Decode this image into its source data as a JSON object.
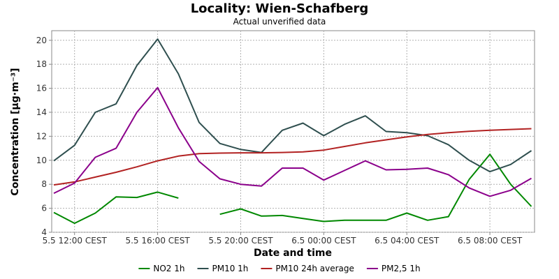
{
  "chart_data": {
    "type": "line",
    "title": "Locality: Wien-Schafberg",
    "subtitle": "Actual unverified data",
    "xlabel": "Date and time",
    "ylabel": "Concentration [µg·m⁻³]",
    "ylim": [
      4,
      20.8
    ],
    "yticks": [
      4,
      6,
      8,
      10,
      12,
      14,
      16,
      18,
      20
    ],
    "xlim": [
      -0.1,
      23.15
    ],
    "xticks": [
      {
        "x": 1,
        "label": "5.5 12:00 CEST"
      },
      {
        "x": 5,
        "label": "5.5 16:00 CEST"
      },
      {
        "x": 9,
        "label": "5.5 20:00 CEST"
      },
      {
        "x": 13,
        "label": "6.5 00:00 CEST"
      },
      {
        "x": 17,
        "label": "6.5 04:00 CEST"
      },
      {
        "x": 21,
        "label": "6.5 08:00 CEST"
      }
    ],
    "grid": true,
    "legend_position": "bottom",
    "series": [
      {
        "name": "NO2 1h",
        "color": "#008800",
        "values": [
          5.65,
          4.75,
          5.6,
          6.95,
          6.9,
          7.35,
          6.85,
          null,
          5.5,
          5.95,
          5.35,
          5.4,
          5.15,
          4.9,
          5.0,
          5.0,
          5.0,
          5.6,
          5.0,
          5.3,
          8.4,
          10.5,
          8.0,
          6.15
        ]
      },
      {
        "name": "PM10 1h",
        "color": "#2f4f4f",
        "values": [
          9.95,
          11.25,
          14.0,
          14.7,
          17.9,
          20.1,
          17.2,
          13.15,
          11.4,
          10.9,
          10.65,
          12.5,
          13.1,
          12.05,
          13.0,
          13.7,
          12.4,
          12.3,
          12.05,
          11.3,
          10.0,
          9.05,
          9.65,
          10.8
        ]
      },
      {
        "name": "PM10 24h average",
        "color": "#b22222",
        "values": [
          7.95,
          8.2,
          8.6,
          9.0,
          9.45,
          9.95,
          10.35,
          10.55,
          10.6,
          10.62,
          10.62,
          10.65,
          10.7,
          10.85,
          11.15,
          11.45,
          11.7,
          11.95,
          12.15,
          12.3,
          12.42,
          12.5,
          12.57,
          12.63
        ]
      },
      {
        "name": "PM2,5 1h",
        "color": "#8b008b",
        "values": [
          7.25,
          8.1,
          10.25,
          11.0,
          14.0,
          16.05,
          12.7,
          9.9,
          8.45,
          8.0,
          7.85,
          9.35,
          9.35,
          8.35,
          9.15,
          9.95,
          9.2,
          9.25,
          9.35,
          8.8,
          7.7,
          7.0,
          7.5,
          8.5
        ]
      }
    ]
  }
}
